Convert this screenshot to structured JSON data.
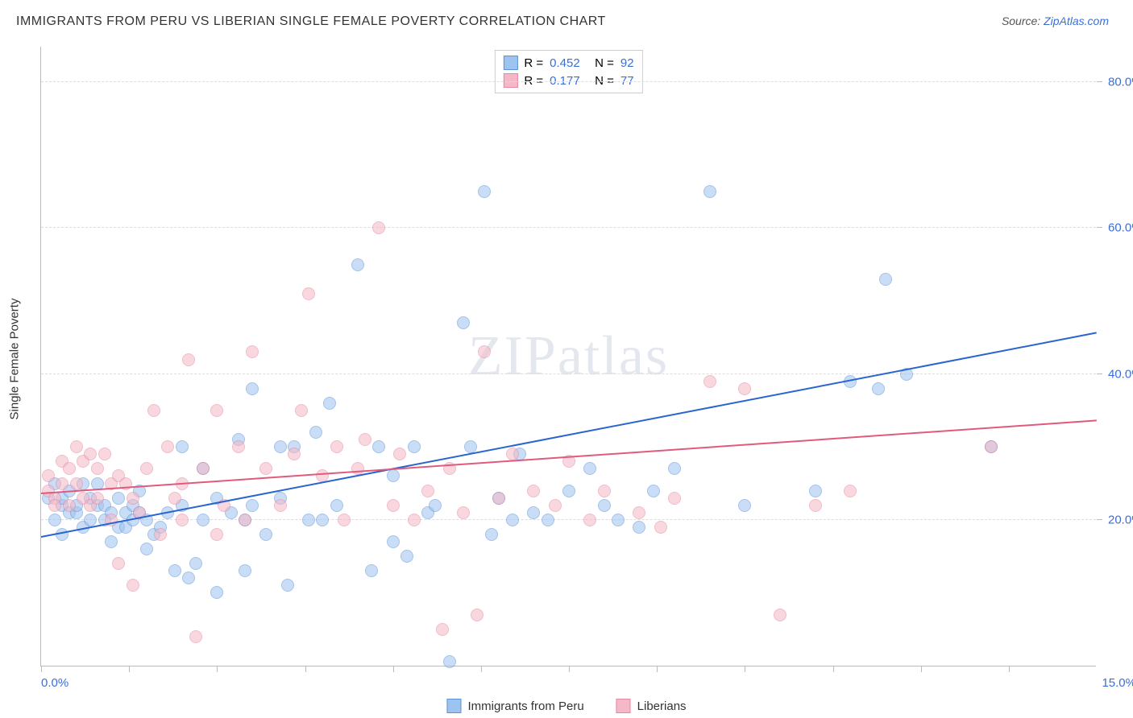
{
  "title": "IMMIGRANTS FROM PERU VS LIBERIAN SINGLE FEMALE POVERTY CORRELATION CHART",
  "source_prefix": "Source: ",
  "source_link": "ZipAtlas.com",
  "watermark": "ZIPatlas",
  "y_axis_title": "Single Female Poverty",
  "chart": {
    "type": "scatter",
    "xlim": [
      0,
      15
    ],
    "ylim": [
      0,
      85
    ],
    "y_ticks": [
      20,
      40,
      60,
      80
    ],
    "y_tick_labels": [
      "20.0%",
      "40.0%",
      "60.0%",
      "80.0%"
    ],
    "x_ticks": [
      0,
      1.25,
      2.5,
      3.75,
      5,
      6.25,
      7.5,
      8.75,
      10,
      11.25,
      12.5,
      13.75
    ],
    "x_min_label": "0.0%",
    "x_max_label": "15.0%",
    "background_color": "#ffffff",
    "grid_color": "#dddddd",
    "axis_color": "#bbbbbb",
    "label_color_blue": "#3b6fd6",
    "point_radius": 8,
    "point_opacity": 0.55
  },
  "series": [
    {
      "name": "Immigrants from Peru",
      "color_fill": "#9dc3f0",
      "color_stroke": "#5a93d8",
      "trend_color": "#2a64cf",
      "R_label": "R =",
      "R_value": "0.452",
      "N_label": "N =",
      "N_value": "92",
      "trend": {
        "x1": 0,
        "y1": 17.5,
        "x2": 15,
        "y2": 45.5
      },
      "points": [
        [
          0.1,
          23
        ],
        [
          0.2,
          20
        ],
        [
          0.2,
          25
        ],
        [
          0.3,
          22
        ],
        [
          0.3,
          23
        ],
        [
          0.3,
          18
        ],
        [
          0.4,
          21
        ],
        [
          0.4,
          24
        ],
        [
          0.5,
          21
        ],
        [
          0.5,
          22
        ],
        [
          0.6,
          25
        ],
        [
          0.6,
          19
        ],
        [
          0.7,
          20
        ],
        [
          0.7,
          23
        ],
        [
          0.8,
          22
        ],
        [
          0.8,
          25
        ],
        [
          0.9,
          20
        ],
        [
          0.9,
          22
        ],
        [
          1.0,
          21
        ],
        [
          1.0,
          17
        ],
        [
          1.1,
          19
        ],
        [
          1.1,
          23
        ],
        [
          1.2,
          21
        ],
        [
          1.2,
          19
        ],
        [
          1.3,
          22
        ],
        [
          1.3,
          20
        ],
        [
          1.4,
          21
        ],
        [
          1.4,
          24
        ],
        [
          1.5,
          16
        ],
        [
          1.5,
          20
        ],
        [
          1.6,
          18
        ],
        [
          1.7,
          19
        ],
        [
          1.8,
          21
        ],
        [
          1.9,
          13
        ],
        [
          2.0,
          22
        ],
        [
          2.0,
          30
        ],
        [
          2.1,
          12
        ],
        [
          2.2,
          14
        ],
        [
          2.3,
          27
        ],
        [
          2.3,
          20
        ],
        [
          2.5,
          23
        ],
        [
          2.5,
          10
        ],
        [
          2.7,
          21
        ],
        [
          2.8,
          31
        ],
        [
          2.9,
          13
        ],
        [
          2.9,
          20
        ],
        [
          3.0,
          38
        ],
        [
          3.0,
          22
        ],
        [
          3.2,
          18
        ],
        [
          3.4,
          30
        ],
        [
          3.5,
          11
        ],
        [
          3.4,
          23
        ],
        [
          3.6,
          30
        ],
        [
          3.8,
          20
        ],
        [
          3.9,
          32
        ],
        [
          4.0,
          20
        ],
        [
          4.1,
          36
        ],
        [
          4.2,
          22
        ],
        [
          4.5,
          55
        ],
        [
          4.7,
          13
        ],
        [
          4.8,
          30
        ],
        [
          5.0,
          17
        ],
        [
          5.0,
          26
        ],
        [
          5.2,
          15
        ],
        [
          5.3,
          30
        ],
        [
          5.5,
          21
        ],
        [
          5.6,
          22
        ],
        [
          5.8,
          0.5
        ],
        [
          6.0,
          47
        ],
        [
          6.1,
          30
        ],
        [
          6.3,
          65
        ],
        [
          6.4,
          18
        ],
        [
          6.5,
          23
        ],
        [
          6.7,
          20
        ],
        [
          6.8,
          29
        ],
        [
          7.0,
          21
        ],
        [
          7.2,
          20
        ],
        [
          7.5,
          24
        ],
        [
          7.8,
          27
        ],
        [
          8.0,
          22
        ],
        [
          8.2,
          20
        ],
        [
          8.5,
          19
        ],
        [
          8.7,
          24
        ],
        [
          9.0,
          27
        ],
        [
          9.5,
          65
        ],
        [
          10.0,
          22
        ],
        [
          11.0,
          24
        ],
        [
          11.5,
          39
        ],
        [
          11.9,
          38
        ],
        [
          12.0,
          53
        ],
        [
          12.3,
          40
        ],
        [
          13.5,
          30
        ]
      ]
    },
    {
      "name": "Liberians",
      "color_fill": "#f5b8c6",
      "color_stroke": "#e686a0",
      "trend_color": "#e05a7d",
      "R_label": "R = ",
      "R_value": "0.177",
      "N_label": "N =",
      "N_value": "77",
      "trend": {
        "x1": 0,
        "y1": 23.5,
        "x2": 15,
        "y2": 33.5
      },
      "points": [
        [
          0.1,
          26
        ],
        [
          0.1,
          24
        ],
        [
          0.2,
          23
        ],
        [
          0.2,
          22
        ],
        [
          0.3,
          25
        ],
        [
          0.3,
          28
        ],
        [
          0.4,
          22
        ],
        [
          0.4,
          27
        ],
        [
          0.5,
          30
        ],
        [
          0.5,
          25
        ],
        [
          0.6,
          28
        ],
        [
          0.6,
          23
        ],
        [
          0.7,
          29
        ],
        [
          0.7,
          22
        ],
        [
          0.8,
          23
        ],
        [
          0.8,
          27
        ],
        [
          0.9,
          29
        ],
        [
          1.0,
          25
        ],
        [
          1.0,
          20
        ],
        [
          1.1,
          26
        ],
        [
          1.1,
          14
        ],
        [
          1.2,
          25
        ],
        [
          1.3,
          11
        ],
        [
          1.3,
          23
        ],
        [
          1.4,
          21
        ],
        [
          1.5,
          27
        ],
        [
          1.6,
          35
        ],
        [
          1.7,
          18
        ],
        [
          1.8,
          30
        ],
        [
          1.9,
          23
        ],
        [
          2.0,
          20
        ],
        [
          2.0,
          25
        ],
        [
          2.1,
          42
        ],
        [
          2.2,
          4
        ],
        [
          2.3,
          27
        ],
        [
          2.5,
          18
        ],
        [
          2.5,
          35
        ],
        [
          2.6,
          22
        ],
        [
          2.8,
          30
        ],
        [
          2.9,
          20
        ],
        [
          3.0,
          43
        ],
        [
          3.2,
          27
        ],
        [
          3.4,
          22
        ],
        [
          3.6,
          29
        ],
        [
          3.7,
          35
        ],
        [
          3.8,
          51
        ],
        [
          4.0,
          26
        ],
        [
          4.2,
          30
        ],
        [
          4.3,
          20
        ],
        [
          4.5,
          27
        ],
        [
          4.6,
          31
        ],
        [
          4.8,
          60
        ],
        [
          5.0,
          22
        ],
        [
          5.1,
          29
        ],
        [
          5.3,
          20
        ],
        [
          5.5,
          24
        ],
        [
          5.7,
          5
        ],
        [
          5.8,
          27
        ],
        [
          6.0,
          21
        ],
        [
          6.2,
          7
        ],
        [
          6.3,
          43
        ],
        [
          6.5,
          23
        ],
        [
          6.7,
          29
        ],
        [
          7.0,
          24
        ],
        [
          7.3,
          22
        ],
        [
          7.5,
          28
        ],
        [
          7.8,
          20
        ],
        [
          8.0,
          24
        ],
        [
          8.5,
          21
        ],
        [
          8.8,
          19
        ],
        [
          9.0,
          23
        ],
        [
          9.5,
          39
        ],
        [
          10.0,
          38
        ],
        [
          10.5,
          7
        ],
        [
          11.0,
          22
        ],
        [
          11.5,
          24
        ],
        [
          13.5,
          30
        ]
      ]
    }
  ],
  "legend_bottom": [
    {
      "label": "Immigrants from Peru"
    },
    {
      "label": "Liberians"
    }
  ]
}
